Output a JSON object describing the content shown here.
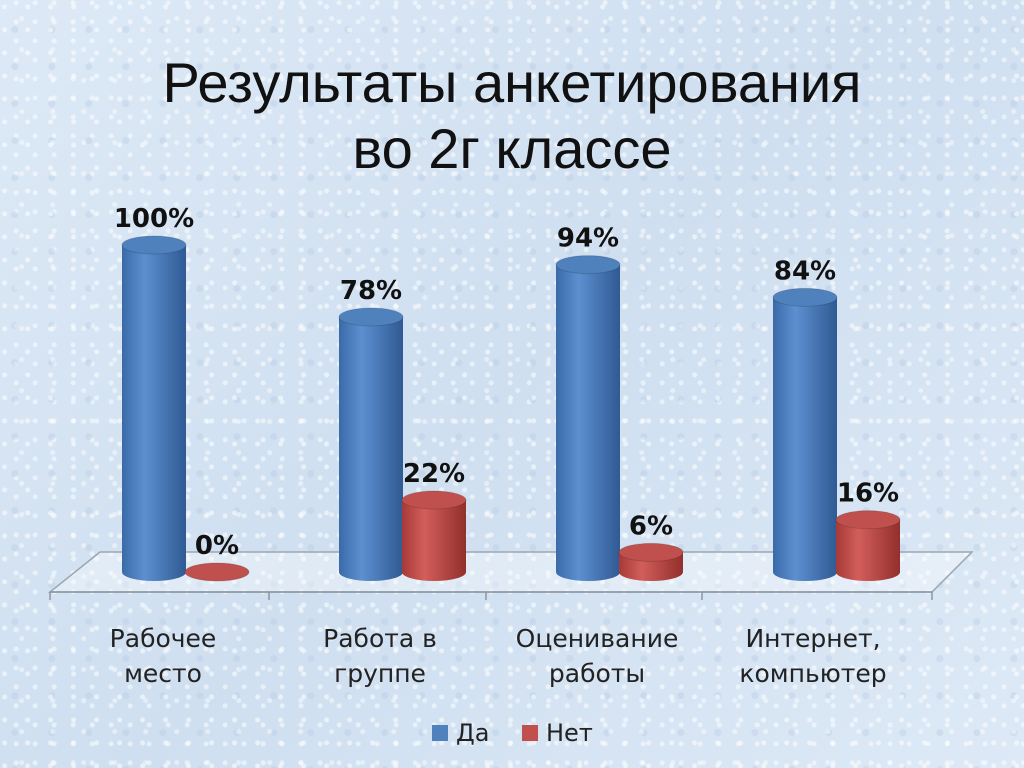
{
  "title_lines": [
    "Результаты анкетирования",
    "во 2г классе"
  ],
  "chart_data": {
    "type": "bar",
    "title": "Результаты анкетирования во 2г классе",
    "categories": [
      [
        "Рабочее",
        "место"
      ],
      [
        "Работа в",
        "группе"
      ],
      [
        "Оценивание",
        "работы"
      ],
      [
        "Интернет,",
        "компьютер"
      ]
    ],
    "series": [
      {
        "name": "Да",
        "color": "#4f81bd",
        "values": [
          100,
          78,
          94,
          84
        ],
        "labels": [
          "100%",
          "78%",
          "94%",
          "84%"
        ]
      },
      {
        "name": "Нет",
        "color": "#c0504d",
        "values": [
          0,
          22,
          6,
          16
        ],
        "labels": [
          "0%",
          "22%",
          "6%",
          "16%"
        ]
      }
    ],
    "ylim": [
      0,
      100
    ],
    "unit": "%",
    "legend_position": "bottom",
    "style": "3d-cylinder",
    "grid": false
  }
}
